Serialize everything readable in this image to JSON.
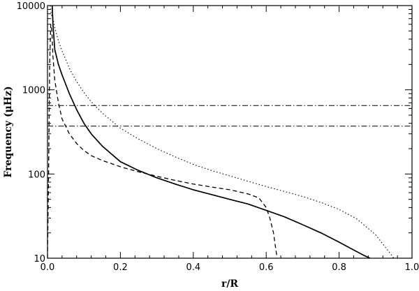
{
  "chart_data": {
    "type": "line",
    "title": "",
    "xlabel": "r/R",
    "ylabel": "Frequency (μHz)",
    "xlim": [
      0.0,
      1.0
    ],
    "ylim": [
      10,
      10000
    ],
    "yscale": "log",
    "grid": false,
    "x_ticks": [
      0.0,
      0.2,
      0.4,
      0.6,
      0.8,
      1.0
    ],
    "x_tick_labels": [
      "0.0",
      "0.2",
      "0.4",
      "0.6",
      "0.8",
      "1.0"
    ],
    "y_ticks": [
      10,
      100,
      1000,
      10000
    ],
    "y_tick_labels": [
      "10",
      "100",
      "1000",
      "10000"
    ],
    "series": [
      {
        "style": "solid",
        "x": [
          0.013,
          0.015,
          0.02,
          0.03,
          0.04,
          0.06,
          0.08,
          0.1,
          0.12,
          0.15,
          0.2,
          0.25,
          0.3,
          0.35,
          0.4,
          0.45,
          0.5,
          0.55,
          0.6,
          0.65,
          0.7,
          0.75,
          0.8,
          0.84,
          0.87,
          0.885
        ],
        "y": [
          10000,
          6000,
          3000,
          2000,
          1500,
          900,
          580,
          400,
          300,
          215,
          140,
          110,
          90,
          76,
          65,
          57,
          50,
          44,
          37,
          31,
          25,
          20,
          15.5,
          12.5,
          10.7,
          10
        ]
      },
      {
        "style": "dashed",
        "x": [
          0.0,
          0.003,
          0.006,
          0.009,
          0.012,
          0.015,
          0.02,
          0.03,
          0.04,
          0.06,
          0.08,
          0.1,
          0.12,
          0.15,
          0.2,
          0.25,
          0.3,
          0.35,
          0.4,
          0.45,
          0.5,
          0.55,
          0.58,
          0.6,
          0.61,
          0.62,
          0.625,
          0.63
        ],
        "y": [
          10,
          100,
          2000,
          6000,
          5000,
          2500,
          1300,
          700,
          450,
          300,
          230,
          190,
          165,
          145,
          122,
          106,
          94,
          84,
          76,
          70,
          65,
          58,
          52,
          40,
          30,
          20,
          14,
          10
        ]
      },
      {
        "style": "dotted",
        "x": [
          0.008,
          0.01,
          0.015,
          0.02,
          0.03,
          0.04,
          0.06,
          0.08,
          0.1,
          0.12,
          0.15,
          0.2,
          0.25,
          0.3,
          0.35,
          0.4,
          0.45,
          0.5,
          0.55,
          0.6,
          0.65,
          0.7,
          0.75,
          0.8,
          0.85,
          0.9,
          0.93,
          0.95
        ],
        "y": [
          10000,
          8000,
          7000,
          5500,
          3800,
          2900,
          1800,
          1250,
          930,
          720,
          530,
          350,
          260,
          200,
          160,
          130,
          110,
          95,
          82,
          71,
          62,
          54,
          46,
          38,
          29,
          19,
          13,
          10
        ]
      },
      {
        "style": "dash-dot",
        "x": [
          0.0,
          1.0
        ],
        "y": [
          650,
          650
        ]
      },
      {
        "style": "dash-dot",
        "x": [
          0.0,
          1.0
        ],
        "y": [
          370,
          370
        ]
      }
    ]
  }
}
